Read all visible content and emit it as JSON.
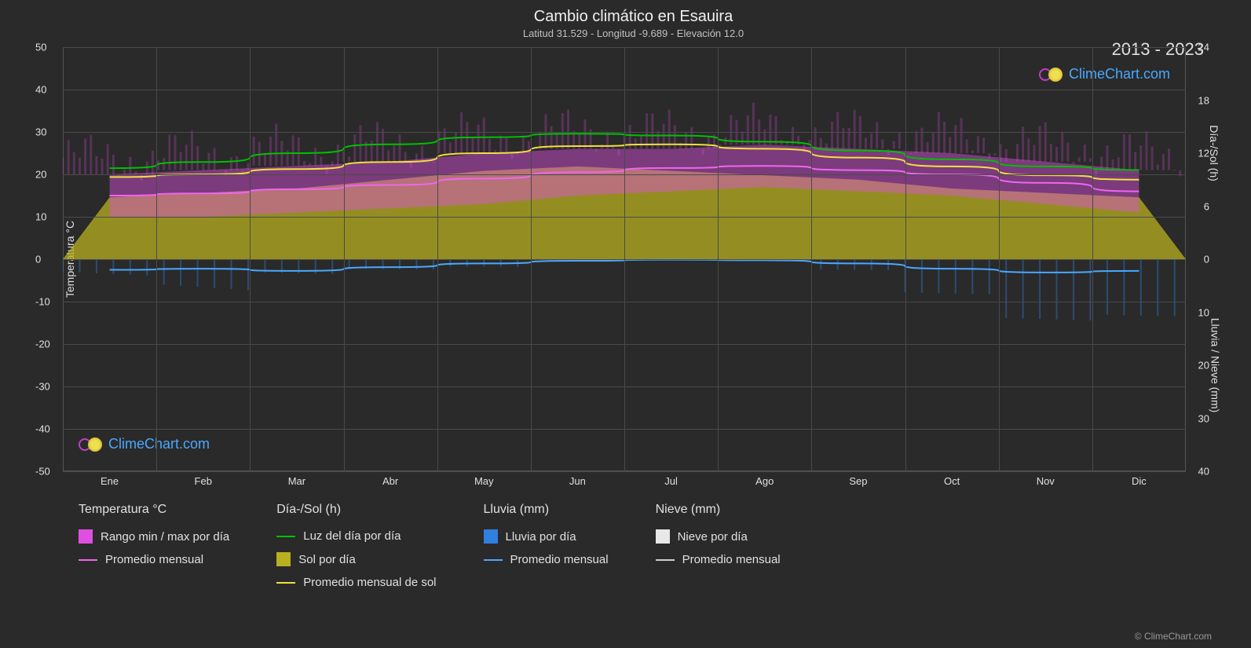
{
  "title": "Cambio climático en Esauira",
  "subtitle": "Latitud 31.529 - Longitud -9.689 - Elevación 12.0",
  "year_range": "2013 - 2023",
  "watermark_text": "ClimeChart.com",
  "copyright": "© ClimeChart.com",
  "chart": {
    "background_color": "#2a2a2a",
    "plot_bg": "#333333",
    "grid_color": "#4a4a4a",
    "border_color": "#555555",
    "left_axis": {
      "label": "Temperatura °C",
      "min": -50,
      "max": 50,
      "ticks": [
        -50,
        -40,
        -30,
        -20,
        -10,
        0,
        10,
        20,
        30,
        40,
        50
      ]
    },
    "right_axis_top": {
      "label": "Día-/Sol (h)",
      "min": 0,
      "max": 24,
      "ticks": [
        0,
        6,
        12,
        18,
        24
      ]
    },
    "right_axis_bottom": {
      "label": "Lluvia / Nieve (mm)",
      "min": 0,
      "max": 40,
      "ticks": [
        0,
        10,
        20,
        30,
        40
      ]
    },
    "x_axis": {
      "categories": [
        "Ene",
        "Feb",
        "Mar",
        "Abr",
        "May",
        "Jun",
        "Jul",
        "Ago",
        "Sep",
        "Oct",
        "Nov",
        "Dic"
      ]
    },
    "series": {
      "temp_range": {
        "color_min": "#c030c0",
        "color_max": "#e050e0",
        "min": [
          10,
          10,
          11,
          12,
          13,
          15,
          16,
          17,
          16,
          15,
          13,
          11
        ],
        "max": [
          20,
          21,
          22,
          23,
          25,
          26,
          26,
          27,
          26,
          25,
          23,
          21
        ]
      },
      "temp_avg": {
        "color": "#ee66ee",
        "values": [
          15,
          15.5,
          16.5,
          17.5,
          19,
          20.5,
          21.5,
          22,
          21,
          20,
          18,
          16
        ]
      },
      "daylight": {
        "color": "#00c000",
        "values_h": [
          10.3,
          11.0,
          12.0,
          13.0,
          13.8,
          14.2,
          14.0,
          13.3,
          12.3,
          11.3,
          10.5,
          10.1
        ]
      },
      "sun_fill": {
        "color": "#b8b020",
        "opacity": 0.75,
        "values_h": [
          7,
          7.5,
          8,
          9,
          10,
          10.5,
          10,
          9.5,
          9,
          8,
          7.5,
          7
        ]
      },
      "sun_avg": {
        "color": "#f0e040",
        "values_h": [
          9.3,
          9.6,
          10.2,
          11.0,
          12.0,
          12.8,
          13.0,
          12.5,
          11.5,
          10.5,
          9.5,
          9.0
        ]
      },
      "rain_daily": {
        "color": "#3080e0",
        "opacity": 0.4,
        "samples_mm": [
          8,
          12,
          5,
          3,
          2,
          0,
          0,
          0,
          2,
          6,
          10,
          9
        ]
      },
      "rain_avg": {
        "color": "#4aa8ff",
        "values_mm": [
          2.0,
          1.8,
          2.2,
          1.5,
          0.8,
          0.3,
          0.1,
          0.2,
          0.8,
          1.8,
          2.5,
          2.2
        ]
      },
      "snow_daily": {
        "color": "#e8e8e8"
      },
      "snow_avg": {
        "color": "#d0d0d0"
      }
    }
  },
  "legend": {
    "cols": [
      {
        "header": "Temperatura °C",
        "items": [
          {
            "type": "swatch",
            "color": "#e050e0",
            "label": "Rango min / max por día"
          },
          {
            "type": "line",
            "color": "#ee66ee",
            "label": "Promedio mensual"
          }
        ]
      },
      {
        "header": "Día-/Sol (h)",
        "items": [
          {
            "type": "line",
            "color": "#00c000",
            "label": "Luz del día por día"
          },
          {
            "type": "swatch",
            "color": "#b8b020",
            "label": "Sol por día"
          },
          {
            "type": "line",
            "color": "#f0e040",
            "label": "Promedio mensual de sol"
          }
        ]
      },
      {
        "header": "Lluvia (mm)",
        "items": [
          {
            "type": "swatch",
            "color": "#3080e0",
            "label": "Lluvia por día"
          },
          {
            "type": "line",
            "color": "#4aa8ff",
            "label": "Promedio mensual"
          }
        ]
      },
      {
        "header": "Nieve (mm)",
        "items": [
          {
            "type": "swatch",
            "color": "#e8e8e8",
            "label": "Nieve por día"
          },
          {
            "type": "line",
            "color": "#d0d0d0",
            "label": "Promedio mensual"
          }
        ]
      }
    ]
  }
}
